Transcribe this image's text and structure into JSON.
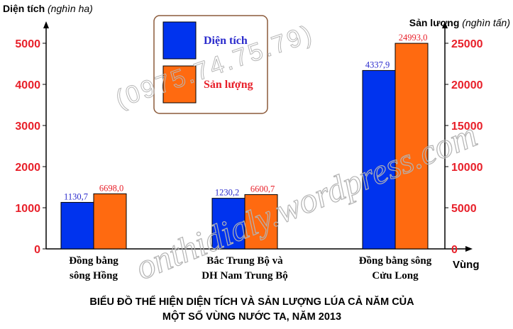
{
  "chart_data": {
    "type": "bar",
    "categories": [
      [
        "Đồng bằng",
        "sông Hồng"
      ],
      [
        "Bắc Trung Bộ và",
        "DH Nam Trung Bộ"
      ],
      [
        "Đồng bằng sông",
        "Cửu Long"
      ]
    ],
    "series": [
      {
        "name": "Diện tích",
        "axis": "left",
        "color": "#0033ee",
        "label_color": "#2a2acc",
        "values": [
          1130.7,
          1230.2,
          4337.9
        ],
        "labels": [
          "1130,7",
          "1230,2",
          "4337,9"
        ]
      },
      {
        "name": "Sản lượng",
        "axis": "right",
        "color": "#ff6a10",
        "label_color": "#e8202a",
        "values": [
          6698.0,
          6600.7,
          24993.0
        ],
        "labels": [
          "6698,0",
          "6600,7",
          "24993,0"
        ]
      }
    ],
    "y_left": {
      "label": "Diện tích",
      "unit": "(nghìn ha)",
      "ylim": [
        0,
        5000
      ],
      "ticks": [
        0,
        1000,
        2000,
        3000,
        4000,
        5000
      ]
    },
    "y_right": {
      "label": "Sản lượng",
      "unit": "(nghìn tấn)",
      "ylim": [
        0,
        25000
      ],
      "ticks": [
        0,
        5000,
        10000,
        15000,
        20000,
        25000
      ]
    },
    "xlabel": "Vùng",
    "title_lines": [
      "BIỂU ĐỒ THỂ HIỆN DIỆN TÍCH VÀ SẢN LƯỢNG LÚA CẢ NĂM CỦA",
      "MỘT SỐ VÙNG NƯỚC TA, NĂM 2013"
    ],
    "legend": {
      "placement": "top-left",
      "border_color": "#8b5a3a"
    },
    "tick_color": "#e8202a",
    "grid": false
  },
  "watermarks": [
    "(0975.74.75.79)",
    "onthidialy.wordpress.com"
  ]
}
